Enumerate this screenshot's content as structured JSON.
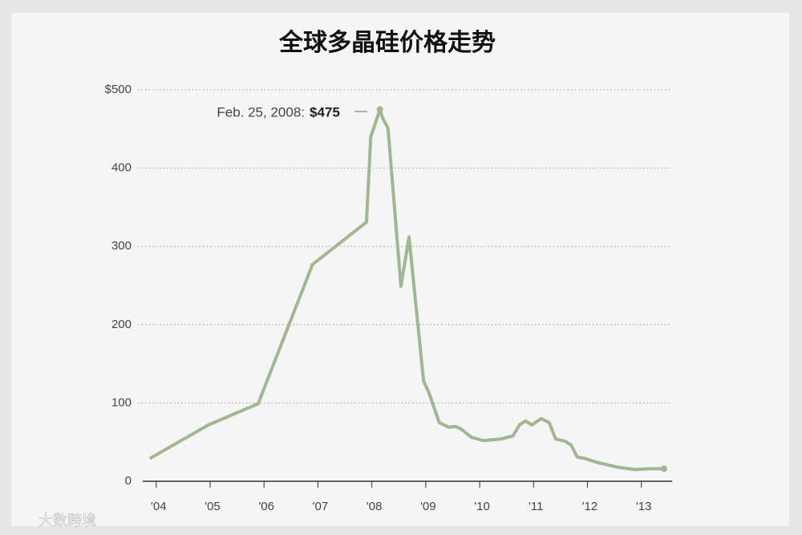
{
  "chart_data": {
    "type": "line",
    "title": "全球多晶硅价格走势",
    "annotation": {
      "label": "Feb. 25, 2008:",
      "value_label": "$475"
    },
    "watermark": "大数跨境",
    "x": [
      2003.88,
      2004.97,
      2005.89,
      2006.9,
      2007.9,
      2007.98,
      2008.15,
      2008.2,
      2008.3,
      2008.54,
      2008.69,
      2008.96,
      2009.06,
      2009.25,
      2009.43,
      2009.55,
      2009.65,
      2009.85,
      2010.07,
      2010.4,
      2010.62,
      2010.74,
      2010.85,
      2010.97,
      2011.14,
      2011.29,
      2011.41,
      2011.59,
      2011.7,
      2011.81,
      2011.96,
      2012.18,
      2012.56,
      2012.88,
      2013.15,
      2013.42
    ],
    "series": [
      {
        "name": "Polysilicon price",
        "color": "#9fb891",
        "values": [
          29,
          72,
          99,
          277,
          331,
          440,
          475,
          464,
          451,
          249,
          312,
          128,
          113,
          75,
          69,
          70,
          67,
          56,
          52,
          54,
          58,
          72,
          77,
          72,
          80,
          75,
          54,
          51,
          46,
          31,
          29,
          24,
          18,
          15,
          16,
          16
        ]
      }
    ],
    "xlim": [
      2003.75,
      2013.57
    ],
    "xticks": [
      {
        "value": 2004,
        "label": "'04"
      },
      {
        "value": 2005,
        "label": "'05"
      },
      {
        "value": 2006,
        "label": "'06"
      },
      {
        "value": 2007,
        "label": "'07"
      },
      {
        "value": 2008,
        "label": "'08"
      },
      {
        "value": 2009,
        "label": "'09"
      },
      {
        "value": 2010,
        "label": "'10"
      },
      {
        "value": 2011,
        "label": "'11"
      },
      {
        "value": 2012,
        "label": "'12"
      },
      {
        "value": 2013,
        "label": "'13"
      }
    ],
    "ylim": [
      0,
      500
    ],
    "yticks": [
      0,
      100,
      200,
      300,
      400,
      {
        "value": 500,
        "label": "$500"
      }
    ],
    "grid": true
  }
}
